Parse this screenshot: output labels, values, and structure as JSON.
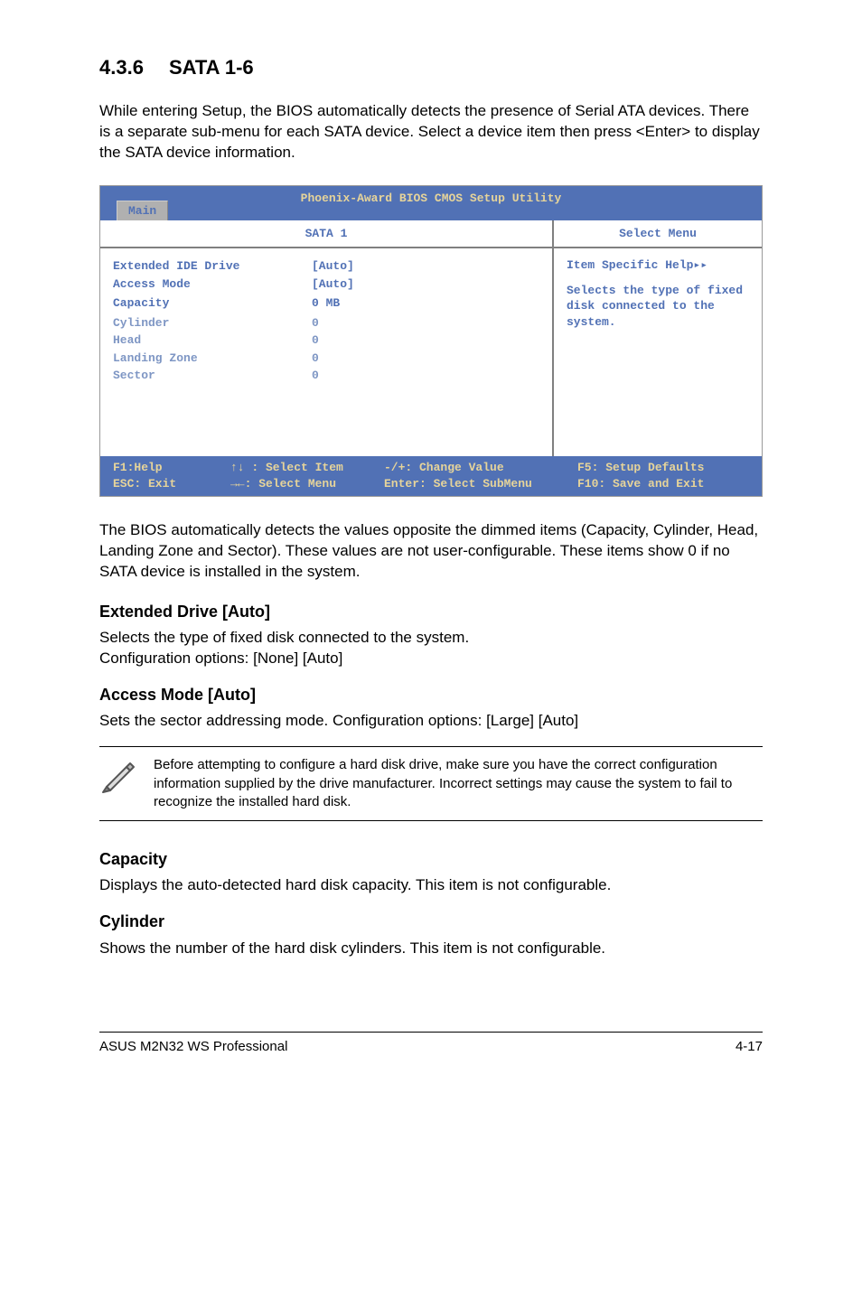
{
  "section": {
    "number": "4.3.6",
    "title": "SATA 1-6"
  },
  "intro": "While entering Setup, the BIOS automatically detects the presence of Serial ATA devices. There is a separate sub-menu for each SATA device. Select a device item then press <Enter> to display the SATA device information.",
  "bios": {
    "title": "Phoenix-Award BIOS CMOS Setup Utility",
    "tab": "Main",
    "left_header": "SATA 1",
    "right_header": "Select Menu",
    "colors": {
      "panel_bg": "#b0b0b0",
      "frame_blue": "#5171b5",
      "accent_yellow": "#e6d49a",
      "active_text": "#5171b5",
      "dim_text": "#7e96c4"
    },
    "items": [
      {
        "label": "Extended IDE Drive",
        "value": "[Auto]",
        "state": "active"
      },
      {
        "label": "Access Mode",
        "value": "[Auto]",
        "state": "active"
      },
      {
        "label": "",
        "value": "",
        "state": "active"
      },
      {
        "label": "Capacity",
        "value": "0 MB",
        "state": "active"
      },
      {
        "label": "",
        "value": "",
        "state": "active"
      },
      {
        "label": "Cylinder",
        "value": "0",
        "state": "dim"
      },
      {
        "label": "Head",
        "value": "0",
        "state": "dim"
      },
      {
        "label": "Landing Zone",
        "value": "0",
        "state": "dim"
      },
      {
        "label": "Sector",
        "value": "0",
        "state": "dim"
      }
    ],
    "help": {
      "title": "Item Specific Help▸▸",
      "body": "Selects the type of fixed disk connected to the system."
    },
    "footer": {
      "row1": {
        "c1": "F1:Help",
        "c2": "↑↓ : Select Item",
        "c3": "-/+:  Change Value",
        "c4": "F5: Setup Defaults"
      },
      "row2": {
        "c1": "ESC: Exit",
        "c2": "→←: Select Menu",
        "c3": "Enter: Select SubMenu",
        "c4": "F10: Save and Exit"
      }
    }
  },
  "after_bios": "The BIOS automatically detects the values opposite the dimmed items (Capacity, Cylinder,  Head, Landing Zone and Sector). These values are not user-configurable. These items show 0 if no SATA device is installed in the system.",
  "subsections": {
    "ext_drive": {
      "heading": "Extended Drive [Auto]",
      "body": "Selects the type of fixed disk connected to the system.\nConfiguration options: [None] [Auto]"
    },
    "access_mode": {
      "heading": "Access Mode [Auto]",
      "body": "Sets the sector addressing mode. Configuration options: [Large] [Auto]"
    },
    "note": "Before attempting to configure a hard disk drive, make sure you have the correct configuration information supplied by the drive manufacturer. Incorrect settings may cause the system to fail to recognize the installed hard disk.",
    "capacity": {
      "heading": "Capacity",
      "body": "Displays the auto-detected hard disk capacity. This item is not configurable."
    },
    "cylinder": {
      "heading": "Cylinder",
      "body": "Shows the number of the hard disk cylinders. This item is not configurable."
    }
  },
  "footer": {
    "left": "ASUS M2N32 WS Professional",
    "right": "4-17"
  }
}
